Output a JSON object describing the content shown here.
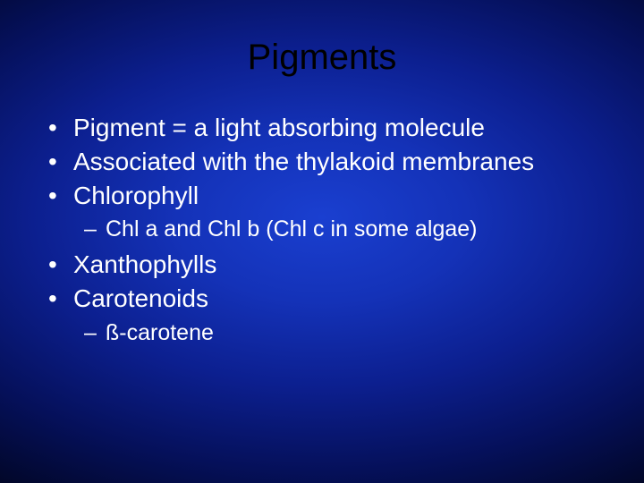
{
  "slide": {
    "title": "Pigments",
    "bullets": [
      {
        "text": "Pigment = a light absorbing molecule"
      },
      {
        "text": "Associated with the thylakoid membranes"
      },
      {
        "text": "Chlorophyll",
        "sub": [
          {
            "text": "Chl a and Chl b (Chl c in some algae)"
          }
        ]
      },
      {
        "text": "Xanthophylls"
      },
      {
        "text": "Carotenoids",
        "sub": [
          {
            "text": "ß-carotene"
          }
        ]
      }
    ],
    "colors": {
      "title_color": "#000000",
      "text_color": "#ffffff",
      "bg_center": "#1a3fd0",
      "bg_edge": "#010520"
    },
    "typography": {
      "font_family": "Arial",
      "title_size_pt": 40,
      "body_size_pt": 28,
      "sub_size_pt": 25
    }
  }
}
